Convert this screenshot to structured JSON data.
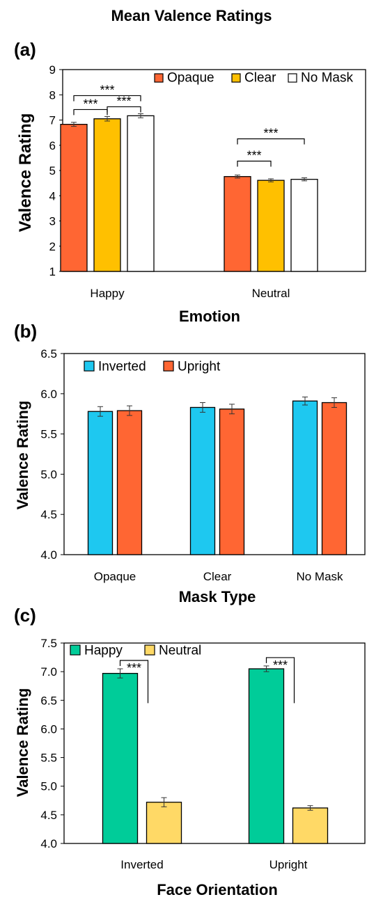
{
  "title": "Mean Valence Ratings",
  "colors": {
    "opaque": "#ff6633",
    "clear": "#ffc000",
    "no_mask": "#ffffff",
    "inverted": "#1ec8f0",
    "upright": "#ff6633",
    "happy": "#00cc99",
    "neutral": "#ffd966"
  },
  "chart_data": [
    {
      "panel_label": "(a)",
      "type": "bar",
      "xlabel": "Emotion",
      "ylabel": "Valence Rating",
      "ylim": [
        1,
        9
      ],
      "yticks": [
        "1",
        "2",
        "3",
        "4",
        "5",
        "6",
        "7",
        "8",
        "9"
      ],
      "categories": [
        "Happy",
        "Neutral"
      ],
      "legend_position": "top-right",
      "series": [
        {
          "name": "Opaque",
          "color": "#ff6633",
          "values": [
            6.83,
            4.76
          ],
          "errors": [
            0.08,
            0.06
          ]
        },
        {
          "name": "Clear",
          "color": "#ffc000",
          "values": [
            7.05,
            4.61
          ],
          "errors": [
            0.09,
            0.06
          ]
        },
        {
          "name": "No Mask",
          "color": "#ffffff",
          "values": [
            7.17,
            4.65
          ],
          "errors": [
            0.08,
            0.06
          ]
        }
      ],
      "annotations": [
        {
          "category": 0,
          "from": 0,
          "to": 2,
          "label": "***",
          "level": 2
        },
        {
          "category": 0,
          "from": 0,
          "to": 1,
          "label": "***",
          "level": 1
        },
        {
          "category": 0,
          "from": 1,
          "to": 2,
          "label": "***",
          "level": 1
        },
        {
          "category": 1,
          "from": 0,
          "to": 2,
          "label": "***",
          "level": 2
        },
        {
          "category": 1,
          "from": 0,
          "to": 1,
          "label": "***",
          "level": 1
        }
      ]
    },
    {
      "panel_label": "(b)",
      "type": "bar",
      "xlabel": "Mask Type",
      "ylabel": "Valence Rating",
      "ylim": [
        4.0,
        6.5
      ],
      "yticks": [
        "4.0",
        "4.5",
        "5.0",
        "5.5",
        "6.0",
        "6.5"
      ],
      "categories": [
        "Opaque",
        "Clear",
        "No Mask"
      ],
      "legend_position": "top-left",
      "series": [
        {
          "name": "Inverted",
          "color": "#1ec8f0",
          "values": [
            5.78,
            5.83,
            5.91
          ],
          "errors": [
            0.06,
            0.06,
            0.05
          ]
        },
        {
          "name": "Upright",
          "color": "#ff6633",
          "values": [
            5.79,
            5.81,
            5.89
          ],
          "errors": [
            0.06,
            0.06,
            0.06
          ]
        }
      ],
      "annotations": []
    },
    {
      "panel_label": "(c)",
      "type": "bar",
      "xlabel": "Face Orientation",
      "ylabel": "Valence Rating",
      "ylim": [
        4.0,
        7.5
      ],
      "yticks": [
        "4.0",
        "4.5",
        "5.0",
        "5.5",
        "6.0",
        "6.5",
        "7.0",
        "7.5"
      ],
      "categories": [
        "Inverted",
        "Upright"
      ],
      "legend_position": "top-left",
      "series": [
        {
          "name": "Happy",
          "color": "#00cc99",
          "values": [
            6.97,
            7.05
          ],
          "errors": [
            0.08,
            0.05
          ]
        },
        {
          "name": "Neutral",
          "color": "#ffd966",
          "values": [
            4.72,
            4.62
          ],
          "errors": [
            0.08,
            0.04
          ]
        }
      ],
      "annotations": [
        {
          "category": 0,
          "from": 0,
          "to": 1,
          "label": "***",
          "level": 1
        },
        {
          "category": 1,
          "from": 0,
          "to": 1,
          "label": "***",
          "level": 1
        }
      ]
    }
  ]
}
